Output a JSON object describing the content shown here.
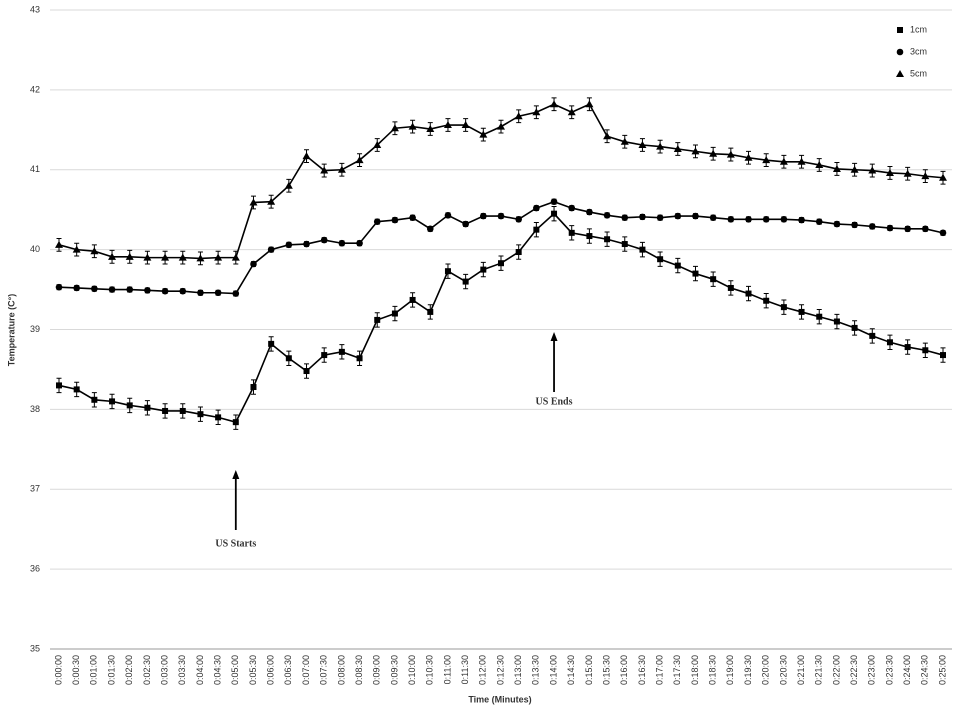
{
  "chart_data": {
    "type": "line",
    "y_label": "Temperature (C°)",
    "x_label": "Time (Minutes)",
    "ylim": [
      35,
      43
    ],
    "yticks": [
      35,
      36,
      37,
      38,
      39,
      40,
      41,
      42,
      43
    ],
    "grid": true,
    "legend": "upper right",
    "categories": [
      "0:00:00",
      "0:00:30",
      "0:01:00",
      "0:01:30",
      "0:02:00",
      "0:02:30",
      "0:03:00",
      "0:03:30",
      "0:04:00",
      "0:04:30",
      "0:05:00",
      "0:05:30",
      "0:06:00",
      "0:06:30",
      "0:07:00",
      "0:07:30",
      "0:08:00",
      "0:08:30",
      "0:09:00",
      "0:09:30",
      "0:10:00",
      "0:10:30",
      "0:11:00",
      "0:11:30",
      "0:12:00",
      "0:12:30",
      "0:13:00",
      "0:13:30",
      "0:14:00",
      "0:14:30",
      "0:15:00",
      "0:15:30",
      "0:16:00",
      "0:16:30",
      "0:17:00",
      "0:17:30",
      "0:18:00",
      "0:18:30",
      "0:19:00",
      "0:19:30",
      "0:20:00",
      "0:20:30",
      "0:21:00",
      "0:21:30",
      "0:22:00",
      "0:22:30",
      "0:23:00",
      "0:23:30",
      "0:24:00",
      "0:24:30",
      "0:25:00"
    ],
    "series": [
      {
        "name": "1cm",
        "color": "#000000",
        "marker": "square",
        "error": 0.09,
        "values": [
          38.3,
          38.25,
          38.12,
          38.1,
          38.05,
          38.02,
          37.98,
          37.98,
          37.94,
          37.9,
          37.84,
          38.28,
          38.82,
          38.64,
          38.48,
          38.68,
          38.72,
          38.64,
          39.12,
          39.2,
          39.37,
          39.22,
          39.73,
          39.6,
          39.75,
          39.83,
          39.97,
          40.25,
          40.45,
          40.21,
          40.17,
          40.13,
          40.07,
          40.0,
          39.88,
          39.8,
          39.7,
          39.63,
          39.52,
          39.45,
          39.36,
          39.28,
          39.22,
          39.16,
          39.1,
          39.02,
          38.92,
          38.84,
          38.78,
          38.74,
          38.68
        ]
      },
      {
        "name": "3cm",
        "color": "#000000",
        "marker": "circle",
        "error": 0.03,
        "values": [
          39.53,
          39.52,
          39.51,
          39.5,
          39.5,
          39.49,
          39.48,
          39.48,
          39.46,
          39.46,
          39.45,
          39.82,
          40.0,
          40.06,
          40.07,
          40.12,
          40.08,
          40.08,
          40.35,
          40.37,
          40.4,
          40.26,
          40.43,
          40.32,
          40.42,
          40.42,
          40.38,
          40.52,
          40.6,
          40.52,
          40.47,
          40.43,
          40.4,
          40.41,
          40.4,
          40.42,
          40.42,
          40.4,
          40.38,
          40.38,
          40.38,
          40.38,
          40.37,
          40.35,
          40.32,
          40.31,
          40.29,
          40.27,
          40.26,
          40.26,
          40.21
        ]
      },
      {
        "name": "5cm",
        "color": "#000000",
        "marker": "triangle",
        "error": 0.08,
        "values": [
          40.06,
          40.0,
          39.98,
          39.91,
          39.91,
          39.9,
          39.9,
          39.9,
          39.89,
          39.9,
          39.9,
          40.59,
          40.6,
          40.8,
          41.17,
          40.99,
          41.0,
          41.12,
          41.31,
          41.52,
          41.54,
          41.51,
          41.56,
          41.56,
          41.44,
          41.54,
          41.67,
          41.72,
          41.82,
          41.72,
          41.82,
          41.42,
          41.35,
          41.31,
          41.29,
          41.26,
          41.23,
          41.2,
          41.19,
          41.15,
          41.12,
          41.1,
          41.1,
          41.06,
          41.01,
          41.0,
          40.99,
          40.96,
          40.95,
          40.92,
          40.9
        ]
      }
    ],
    "annotations": [
      {
        "text": "US Starts",
        "x": "0:05:00"
      },
      {
        "text": "US Ends",
        "x": "0:14:00"
      }
    ]
  }
}
